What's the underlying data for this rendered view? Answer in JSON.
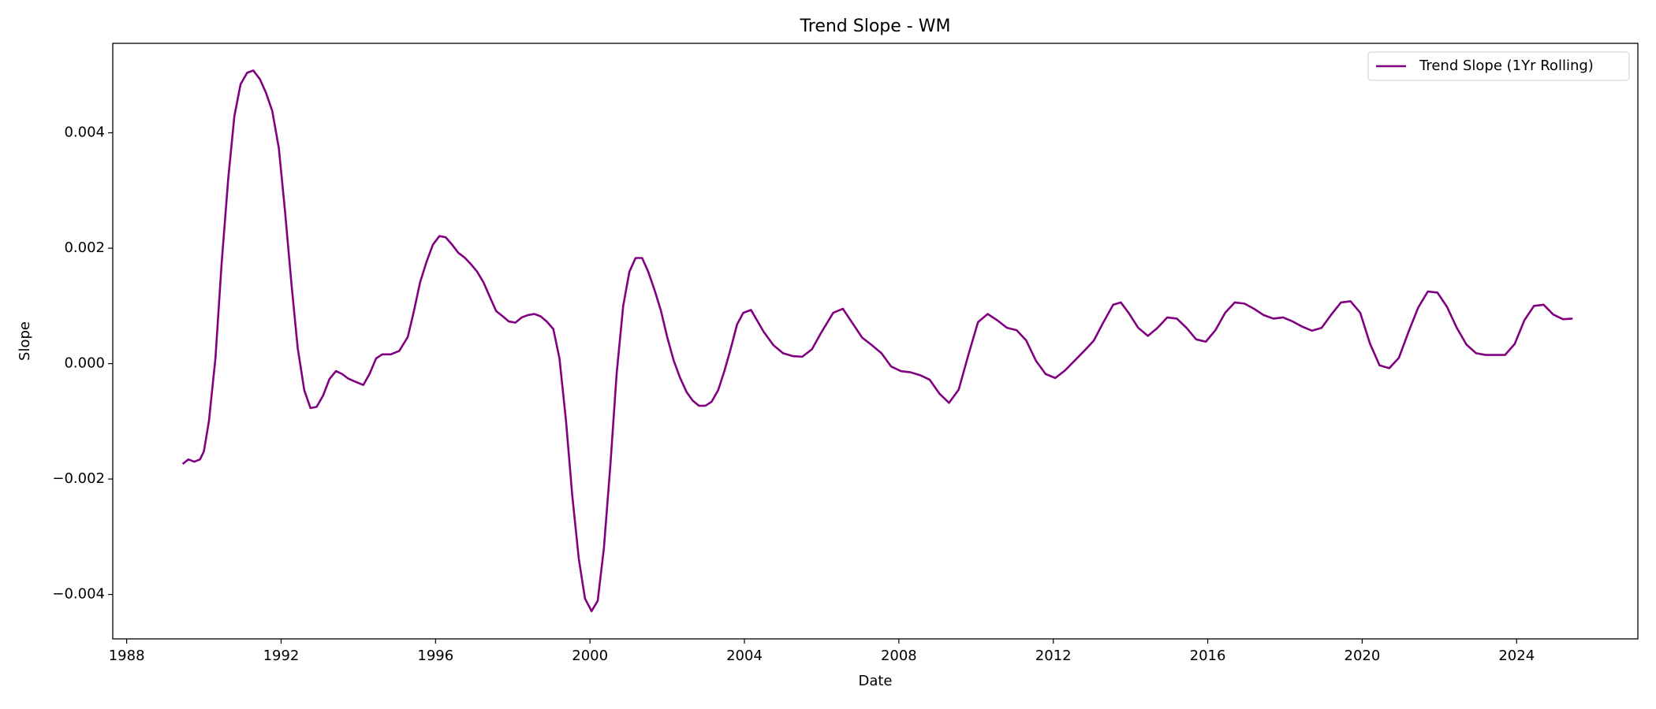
{
  "chart_data": {
    "type": "line",
    "title": "Trend Slope - WM",
    "xlabel": "Date",
    "ylabel": "Slope",
    "x": [
      1989.45,
      1989.6,
      1989.75,
      1989.9,
      1990.0,
      1990.13,
      1990.3,
      1990.46,
      1990.63,
      1990.79,
      1990.95,
      1991.12,
      1991.28,
      1991.45,
      1991.61,
      1991.77,
      1991.94,
      1992.1,
      1992.27,
      1992.43,
      1992.6,
      1992.76,
      1992.92,
      1993.09,
      1993.25,
      1993.42,
      1993.58,
      1993.74,
      1993.91,
      1994.13,
      1994.29,
      1994.46,
      1994.62,
      1994.84,
      1995.06,
      1995.28,
      1995.44,
      1995.6,
      1995.77,
      1995.93,
      1996.1,
      1996.26,
      1996.43,
      1996.59,
      1996.75,
      1996.92,
      1997.08,
      1997.24,
      1997.41,
      1997.57,
      1997.74,
      1997.9,
      1998.07,
      1998.23,
      1998.39,
      1998.56,
      1998.72,
      1998.88,
      1999.05,
      1999.21,
      1999.38,
      1999.54,
      1999.71,
      1999.87,
      2000.04,
      2000.2,
      2000.36,
      2000.53,
      2000.69,
      2000.86,
      2001.02,
      2001.18,
      2001.35,
      2001.51,
      2001.68,
      2001.84,
      2002.0,
      2002.17,
      2002.33,
      2002.5,
      2002.66,
      2002.82,
      2002.99,
      2003.15,
      2003.32,
      2003.48,
      2003.65,
      2003.81,
      2003.97,
      2004.17,
      2004.5,
      2004.75,
      2005.0,
      2005.25,
      2005.5,
      2005.75,
      2006.0,
      2006.3,
      2006.55,
      2006.8,
      2007.05,
      2007.3,
      2007.55,
      2007.8,
      2008.05,
      2008.3,
      2008.55,
      2008.8,
      2009.05,
      2009.3,
      2009.55,
      2009.8,
      2010.05,
      2010.3,
      2010.55,
      2010.8,
      2011.05,
      2011.3,
      2011.55,
      2011.8,
      2012.05,
      2012.3,
      2012.55,
      2012.8,
      2013.05,
      2013.3,
      2013.55,
      2013.75,
      2013.95,
      2014.2,
      2014.45,
      2014.7,
      2014.95,
      2015.2,
      2015.45,
      2015.7,
      2015.95,
      2016.2,
      2016.45,
      2016.7,
      2016.95,
      2017.2,
      2017.45,
      2017.7,
      2017.95,
      2018.2,
      2018.45,
      2018.7,
      2018.95,
      2019.2,
      2019.45,
      2019.7,
      2019.95,
      2020.2,
      2020.45,
      2020.7,
      2020.95,
      2021.2,
      2021.45,
      2021.7,
      2021.95,
      2022.2,
      2022.45,
      2022.7,
      2022.95,
      2023.2,
      2023.45,
      2023.7,
      2023.95,
      2024.2,
      2024.45,
      2024.7,
      2024.95,
      2025.2,
      2025.45
    ],
    "series": [
      {
        "name": "Trend Slope (1Yr Rolling)",
        "color": "purple",
        "values": [
          -0.00174,
          -0.00166,
          -0.0017,
          -0.00166,
          -0.00152,
          -0.001,
          0.0001,
          0.00174,
          0.0032,
          0.00429,
          0.00484,
          0.00504,
          0.00508,
          0.00493,
          0.00469,
          0.00438,
          0.00374,
          0.00265,
          0.00137,
          0.00027,
          -0.00046,
          -0.00077,
          -0.00075,
          -0.00055,
          -0.00027,
          -0.00013,
          -0.00018,
          -0.00026,
          -0.00031,
          -0.00037,
          -0.00018,
          9e-05,
          0.00016,
          0.00016,
          0.00022,
          0.00046,
          0.00091,
          0.00141,
          0.00177,
          0.00206,
          0.00221,
          0.00219,
          0.00206,
          0.00192,
          0.00184,
          0.00172,
          0.00159,
          0.00141,
          0.00115,
          0.00091,
          0.00082,
          0.00073,
          0.00071,
          0.0008,
          0.00084,
          0.00086,
          0.00082,
          0.00073,
          0.0006,
          9e-05,
          -0.001,
          -0.00228,
          -0.00338,
          -0.00407,
          -0.00429,
          -0.00411,
          -0.0032,
          -0.00174,
          -0.00018,
          0.001,
          0.00159,
          0.00183,
          0.00183,
          0.00159,
          0.00126,
          0.00091,
          0.00046,
          5e-05,
          -0.00024,
          -0.00049,
          -0.00064,
          -0.00073,
          -0.00073,
          -0.00066,
          -0.00046,
          -0.00013,
          0.00027,
          0.00068,
          0.00088,
          0.00093,
          0.00055,
          0.00032,
          0.00018,
          0.00013,
          0.00012,
          0.00025,
          0.00055,
          0.00088,
          0.00095,
          0.0007,
          0.00045,
          0.00032,
          0.00018,
          -5e-05,
          -0.00013,
          -0.00015,
          -0.0002,
          -0.00028,
          -0.00052,
          -0.00068,
          -0.00045,
          0.00015,
          0.00072,
          0.00086,
          0.00075,
          0.00062,
          0.00058,
          0.0004,
          5e-05,
          -0.00018,
          -0.00025,
          -0.00012,
          5e-05,
          0.00022,
          0.0004,
          0.00072,
          0.00102,
          0.00106,
          0.00088,
          0.00062,
          0.00048,
          0.00062,
          0.0008,
          0.00078,
          0.00062,
          0.00042,
          0.00038,
          0.00058,
          0.00088,
          0.00106,
          0.00104,
          0.00095,
          0.00084,
          0.00078,
          0.0008,
          0.00073,
          0.00064,
          0.00057,
          0.00062,
          0.00085,
          0.00106,
          0.00108,
          0.00088,
          0.00035,
          -3e-05,
          -8e-05,
          0.0001,
          0.00055,
          0.00097,
          0.00125,
          0.00123,
          0.00098,
          0.00062,
          0.00033,
          0.00018,
          0.00015,
          0.00015,
          0.00015,
          0.00034,
          0.00075,
          0.001,
          0.00102,
          0.00085,
          0.00077,
          0.00078
        ]
      }
    ],
    "xlim": [
      1987.64,
      2027.14
    ],
    "xticks": [
      1988,
      1992,
      1996,
      2000,
      2004,
      2008,
      2012,
      2016,
      2020,
      2024
    ],
    "ylim": [
      -0.00477,
      0.00555
    ],
    "yticks": [
      {
        "value": -0.004,
        "label": "−0.004"
      },
      {
        "value": -0.002,
        "label": "−0.002"
      },
      {
        "value": 0,
        "label": "0.000"
      },
      0.002,
      0.004
    ],
    "grid": false,
    "legend": "upper right"
  }
}
